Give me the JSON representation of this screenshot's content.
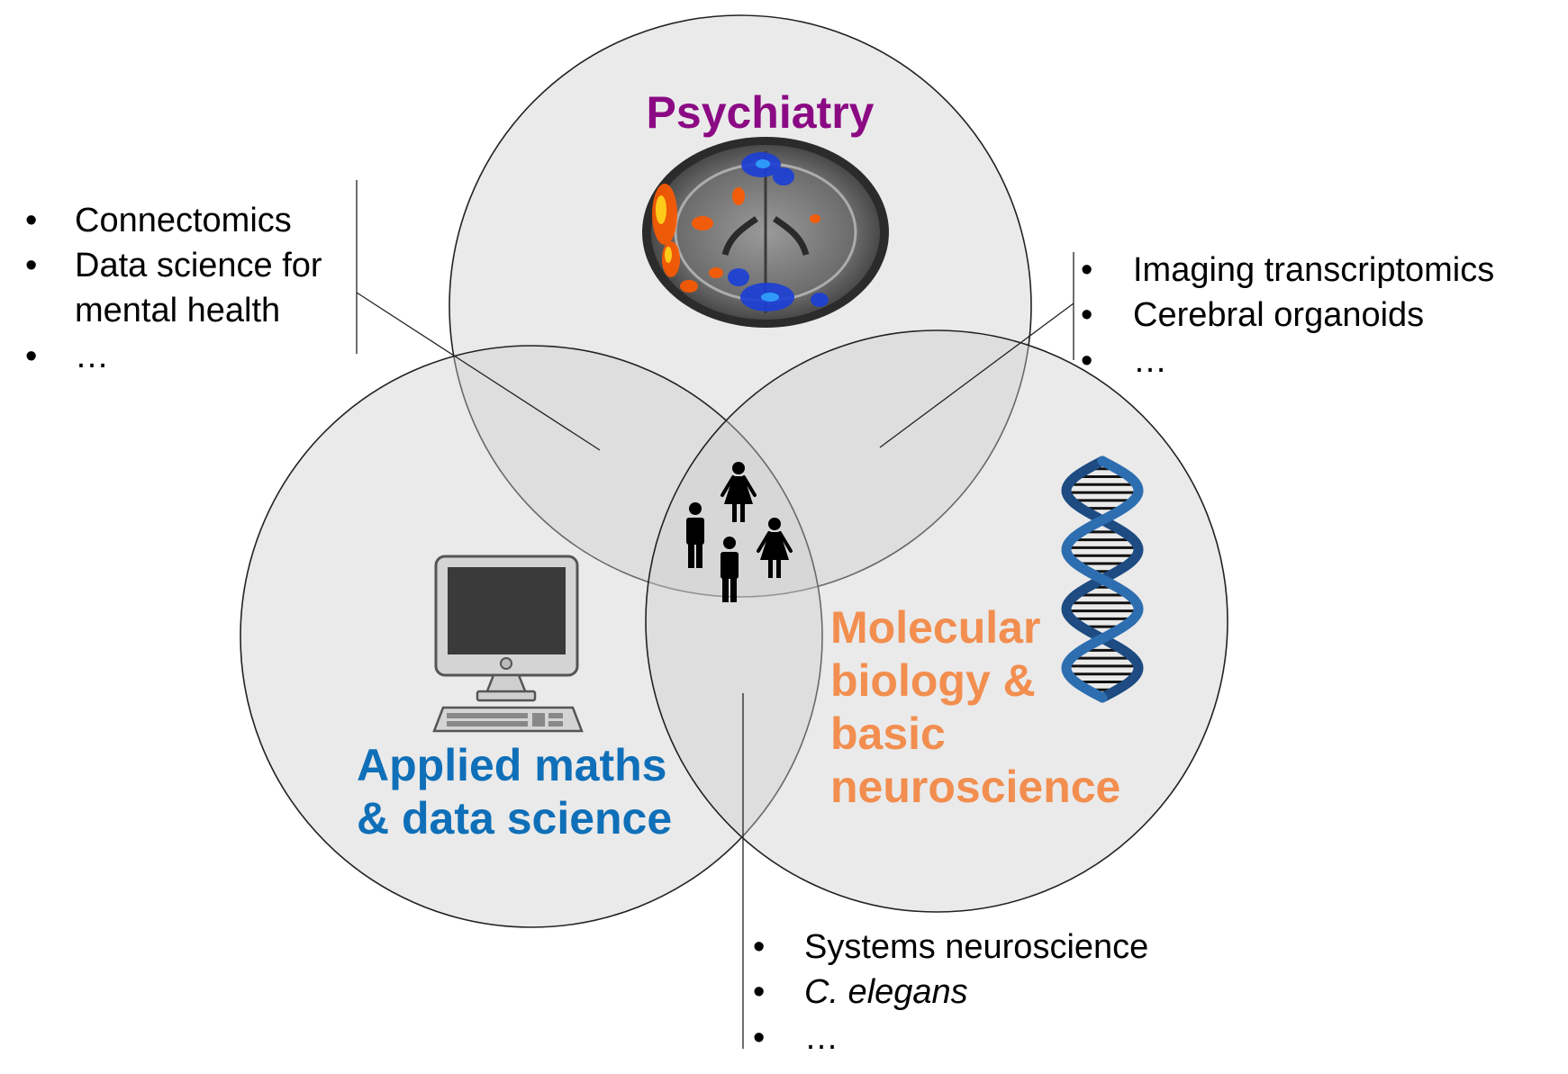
{
  "circles": {
    "psychiatry": {
      "label": "Psychiatry",
      "color": "#8B0A84"
    },
    "applied": {
      "label_lines": [
        "Applied maths",
        "& data science"
      ],
      "color": "#0F6FB8"
    },
    "molecular": {
      "label_lines": [
        "Molecular",
        "biology &",
        "basic",
        "neuroscience"
      ],
      "color": "#F28E4F"
    }
  },
  "lists": {
    "top_left": {
      "bullet": "•",
      "items": [
        "Connectomics",
        "Data science for",
        "mental health",
        "…"
      ]
    },
    "top_right": {
      "bullet": "•",
      "items": [
        "Imaging transcriptomics",
        "Cerebral organoids",
        "…"
      ]
    },
    "bottom": {
      "bullet": "•",
      "items": [
        "Systems neuroscience",
        "C. elegans",
        "…"
      ]
    }
  },
  "icons": {
    "brain": "brain-scan-icon",
    "computer": "desktop-computer-icon",
    "dna": "dna-helix-icon",
    "people": "people-icon"
  }
}
